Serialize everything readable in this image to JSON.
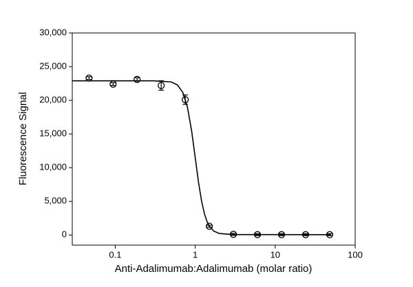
{
  "chart_data": {
    "type": "scatter",
    "x_label": "Anti-Adalimumab:Adalimumab (molar ratio)",
    "y_label": "Fluorescence Signal",
    "x": [
      0.047,
      0.094,
      0.1875,
      0.375,
      0.75,
      1.5,
      3,
      6,
      12,
      24,
      48
    ],
    "values": [
      23300,
      22400,
      23100,
      22200,
      20100,
      1300,
      100,
      50,
      50,
      50,
      50
    ],
    "errors": [
      200,
      200,
      250,
      700,
      700,
      150,
      150,
      150,
      150,
      150,
      150
    ],
    "color": "#000000",
    "fit": {
      "x": [
        0.029,
        0.1,
        0.3,
        0.5,
        0.6,
        0.7,
        0.8,
        0.9,
        1.0,
        1.1,
        1.2,
        1.3,
        1.4,
        1.5,
        1.7,
        2,
        3,
        50
      ],
      "values": [
        22900,
        22900,
        22895,
        22723,
        22277,
        21161,
        18939,
        15510,
        11475,
        7798,
        5036,
        3193,
        2030,
        1313,
        594,
        227,
        60,
        50
      ]
    },
    "xlog": true,
    "xlim": [
      0.029,
      100
    ],
    "xticks": [
      0.1,
      1,
      10,
      100
    ],
    "ylim": [
      -1500,
      30000
    ],
    "yticks": [
      0,
      {
        "value": 5000,
        "label": "5,000"
      },
      {
        "value": 10000,
        "label": "10,000"
      },
      {
        "value": 15000,
        "label": "15,000"
      },
      {
        "value": 20000,
        "label": "20,000"
      },
      {
        "value": 25000,
        "label": "25,000"
      },
      {
        "value": 30000,
        "label": "30,000"
      }
    ]
  }
}
